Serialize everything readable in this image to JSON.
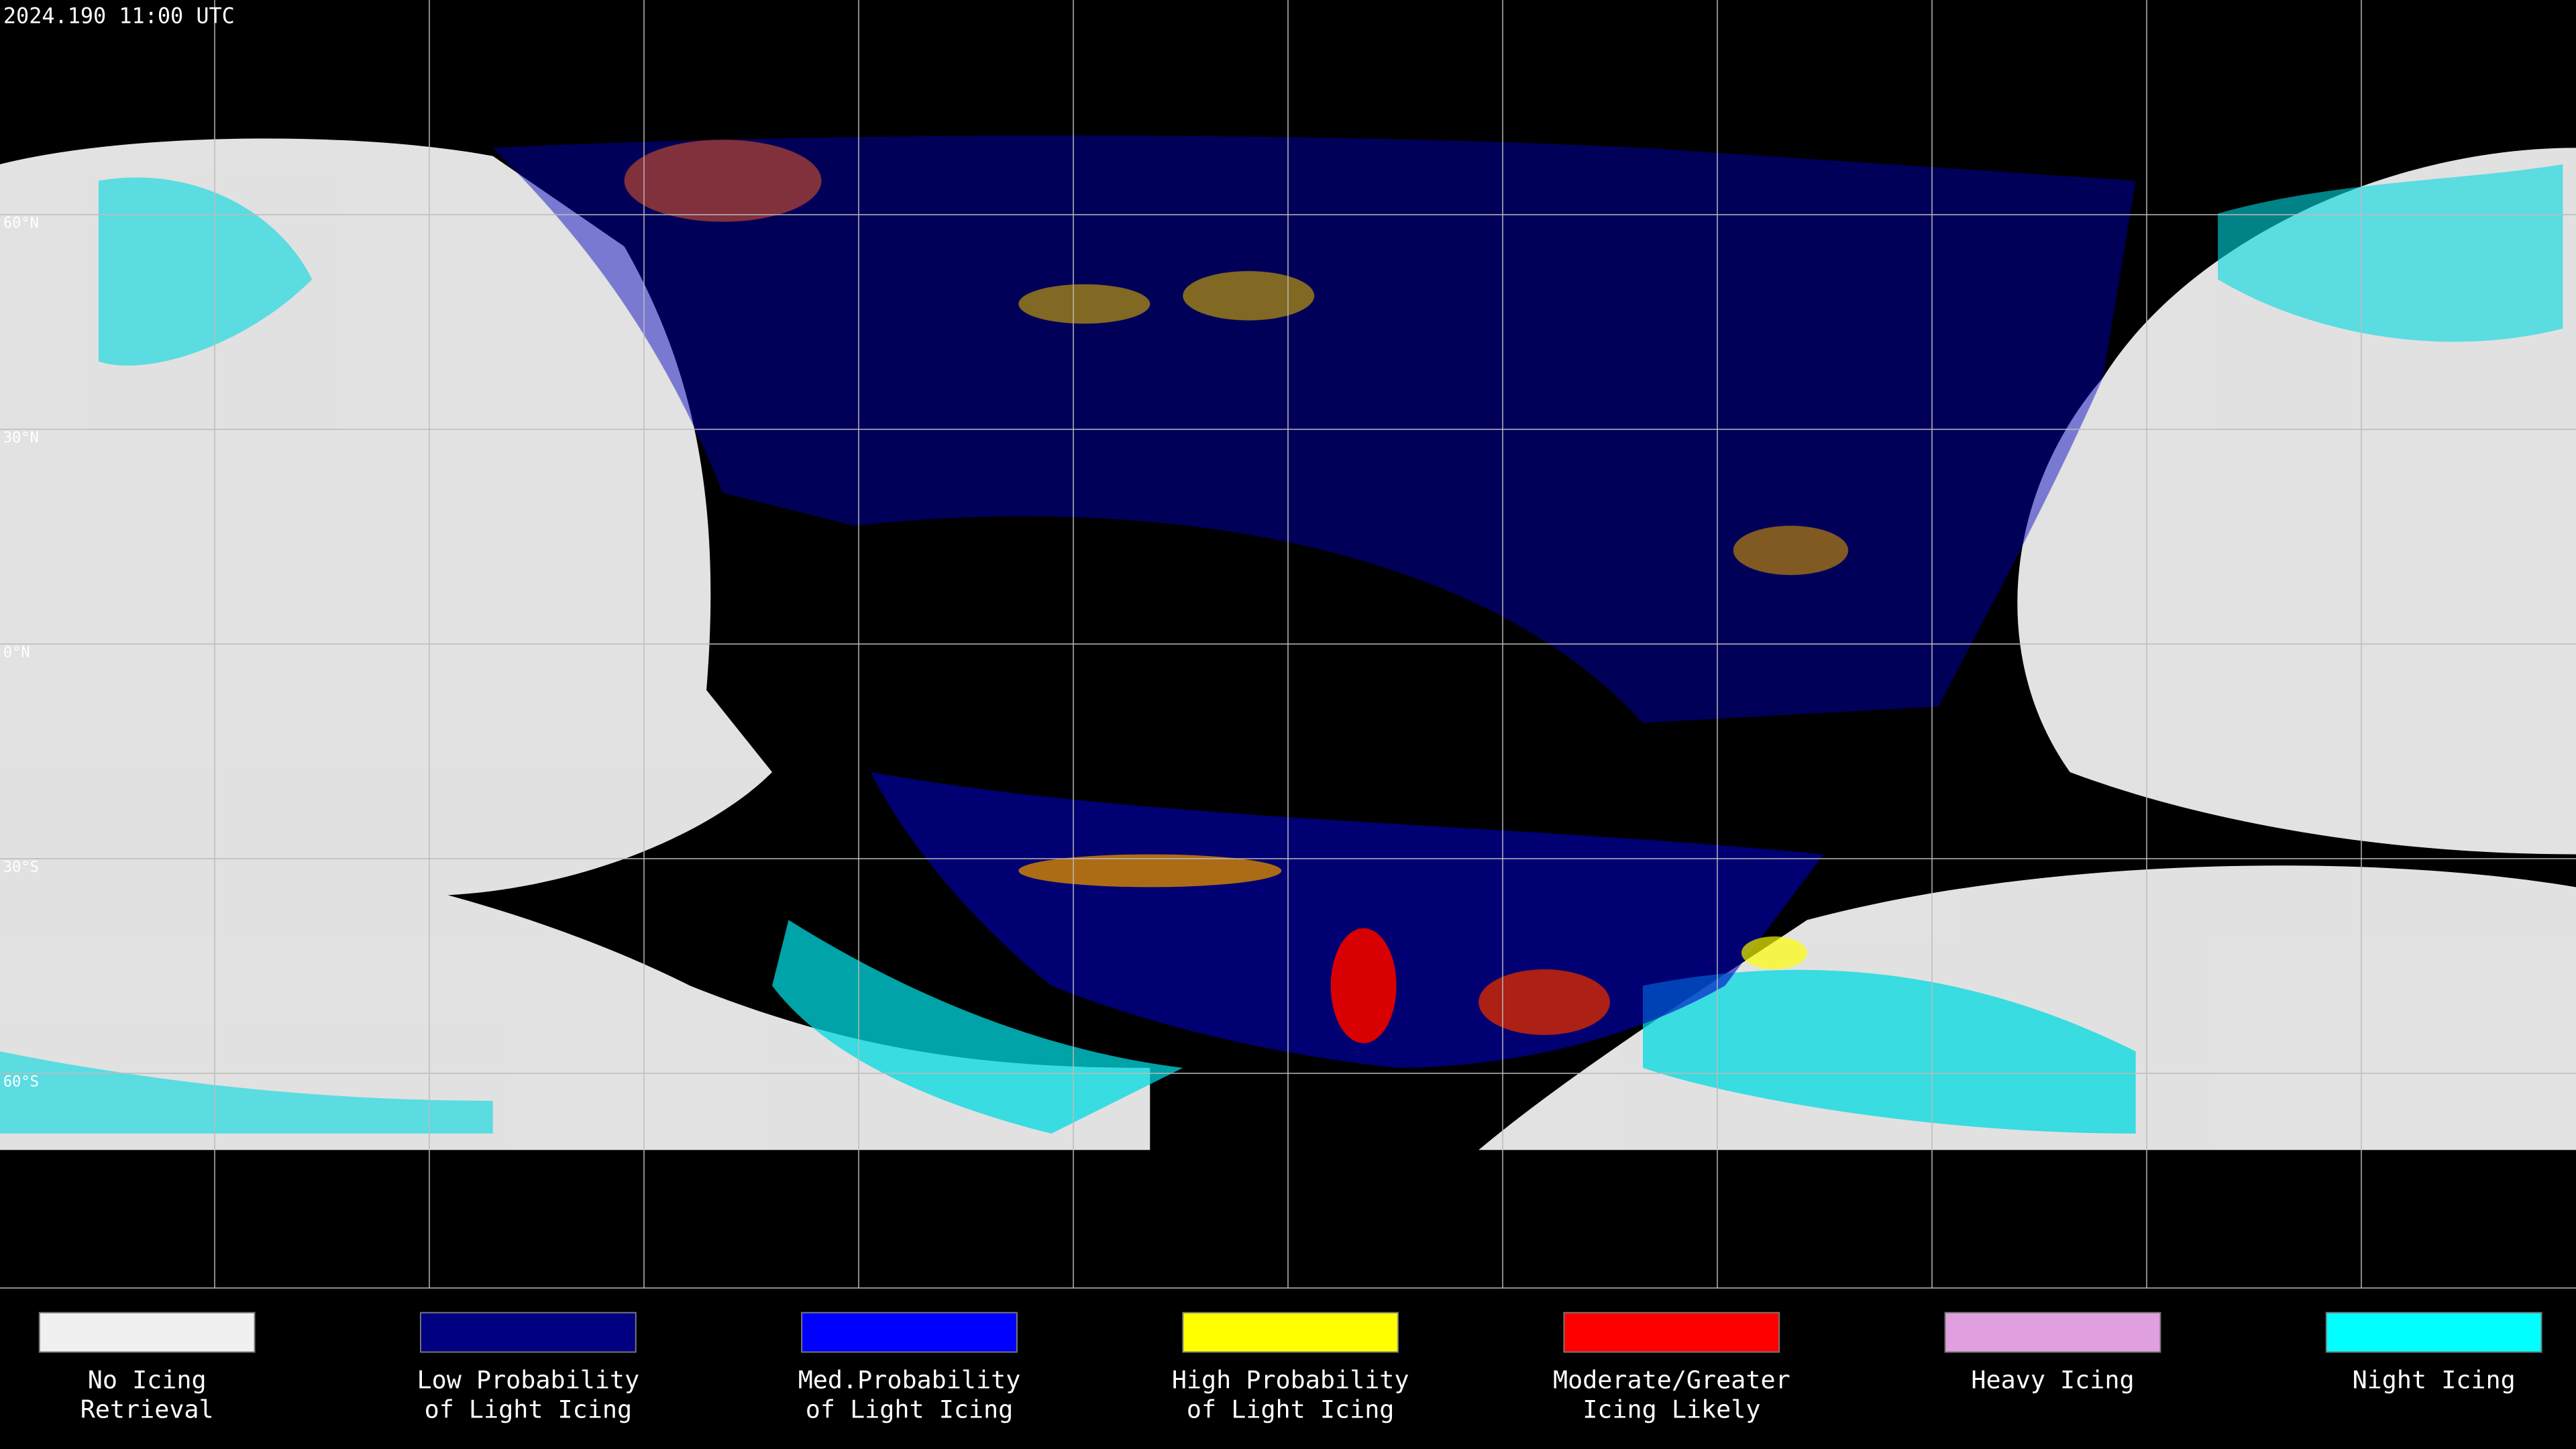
{
  "header": {
    "timestamp": "2024.190 11:00 UTC"
  },
  "map": {
    "lat_labels": [
      "60°N",
      "30°N",
      "0°N",
      "30°S",
      "60°S"
    ]
  },
  "legend": {
    "items": [
      {
        "lines": [
          "No Icing",
          "Retrieval"
        ],
        "color": "#f0f0f0"
      },
      {
        "lines": [
          "Low Probability",
          "of Light Icing"
        ],
        "color": "#000080"
      },
      {
        "lines": [
          "Med.Probability",
          "of Light Icing"
        ],
        "color": "#0000ff"
      },
      {
        "lines": [
          "High Probability",
          "of Light Icing"
        ],
        "color": "#ffff00"
      },
      {
        "lines": [
          "Moderate/Greater",
          "Icing Likely"
        ],
        "color": "#ff0000"
      },
      {
        "lines": [
          "Heavy Icing"
        ],
        "color": "#e0a0e0"
      },
      {
        "lines": [
          "Night Icing"
        ],
        "color": "#00ffff"
      }
    ]
  }
}
